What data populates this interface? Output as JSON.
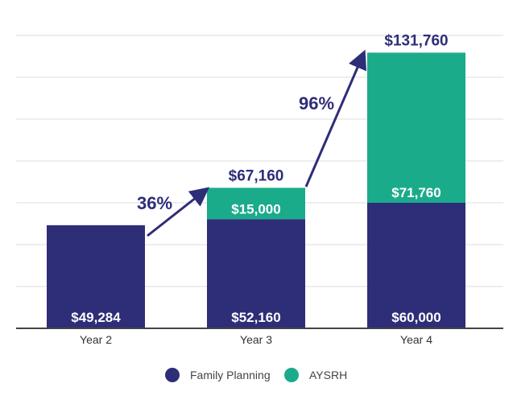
{
  "chart_data": {
    "type": "bar",
    "stacked": true,
    "categories": [
      "Year 2",
      "Year 3",
      "Year 4"
    ],
    "series": [
      {
        "name": "Family Planning",
        "color": "#2e2d78",
        "values": [
          49284,
          52160,
          60000
        ],
        "labels": [
          "$49,284",
          "$52,160",
          "$60,000"
        ]
      },
      {
        "name": "AYSRH",
        "color": "#1aab8b",
        "values": [
          0,
          15000,
          71760
        ],
        "labels": [
          "",
          "$15,000",
          "$71,760"
        ]
      }
    ],
    "totals": [
      null,
      "$67,160",
      "$131,760"
    ],
    "total_values": [
      49284,
      67160,
      131760
    ],
    "growth_annotations": [
      {
        "from": "Year 2",
        "to": "Year 3",
        "label": "36%"
      },
      {
        "from": "Year 3",
        "to": "Year 4",
        "label": "96%"
      }
    ],
    "ylim": [
      0,
      140000
    ],
    "ytick_step": 20000,
    "grid": true,
    "legend_position": "bottom",
    "title": "",
    "xlabel": "",
    "ylabel": ""
  }
}
